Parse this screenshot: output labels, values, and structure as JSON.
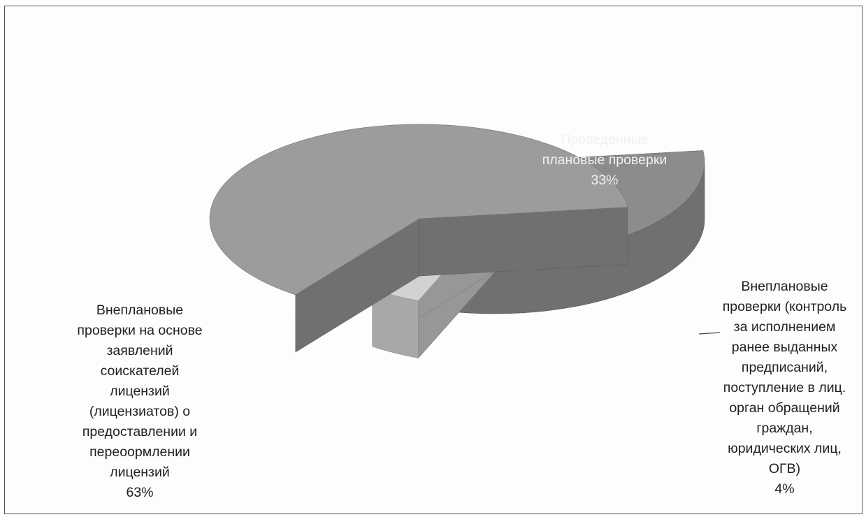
{
  "chart_data": {
    "type": "pie",
    "title": "",
    "style": "3d-exploded",
    "legend": "none",
    "slices": [
      {
        "label_lines": [
          "Внеплановые",
          "проверки на основе",
          "заявлений",
          "соискателей",
          "лицензий",
          "(лицензиатов) о",
          "предоставлении и",
          "переоормлении",
          "лицензий"
        ],
        "value": 63,
        "value_label": "63%",
        "color": "#9c9c9c"
      },
      {
        "label_lines": [
          "Проведенные",
          "плановые проверки"
        ],
        "value": 33,
        "value_label": "33%",
        "color": "#8c8c8c"
      },
      {
        "label_lines": [
          "Внеплановые",
          "проверки (контроль",
          "за исполнением",
          "ранее выданных",
          "предписаний,",
          "поступление в лиц.",
          "орган обращений",
          "граждан,",
          "юридических лиц,",
          "ОГВ)"
        ],
        "value": 4,
        "value_label": "4%",
        "color": "#d2d2d2"
      }
    ]
  }
}
